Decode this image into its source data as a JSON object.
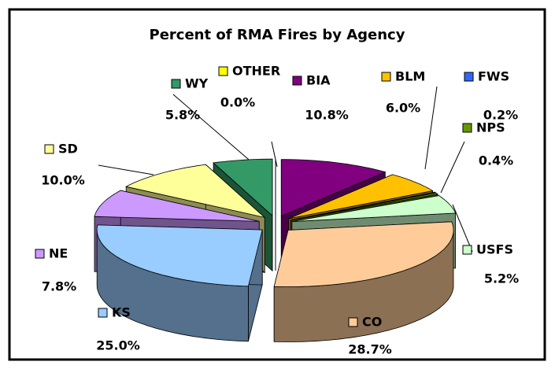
{
  "chart_data": {
    "type": "pie",
    "title": "Percent of RMA Fires by Agency",
    "categories": [
      "BIA",
      "BLM",
      "FWS",
      "NPS",
      "USFS",
      "CO",
      "KS",
      "NE",
      "SD",
      "WY",
      "OTHER"
    ],
    "values": [
      10.8,
      6.0,
      0.2,
      0.4,
      5.2,
      28.7,
      25.0,
      7.8,
      10.0,
      5.8,
      0.0
    ],
    "value_labels": [
      "10.8%",
      "6.0%",
      "0.2%",
      "0.4%",
      "5.2%",
      "28.7%",
      "25.0%",
      "7.8%",
      "10.0%",
      "5.8%",
      "0.0%"
    ],
    "colors": [
      "#800080",
      "#ffc000",
      "#3366ff",
      "#669900",
      "#ccffcc",
      "#ffcc99",
      "#99ccff",
      "#cc99ff",
      "#ffff99",
      "#339966",
      "#ffff00"
    ]
  }
}
